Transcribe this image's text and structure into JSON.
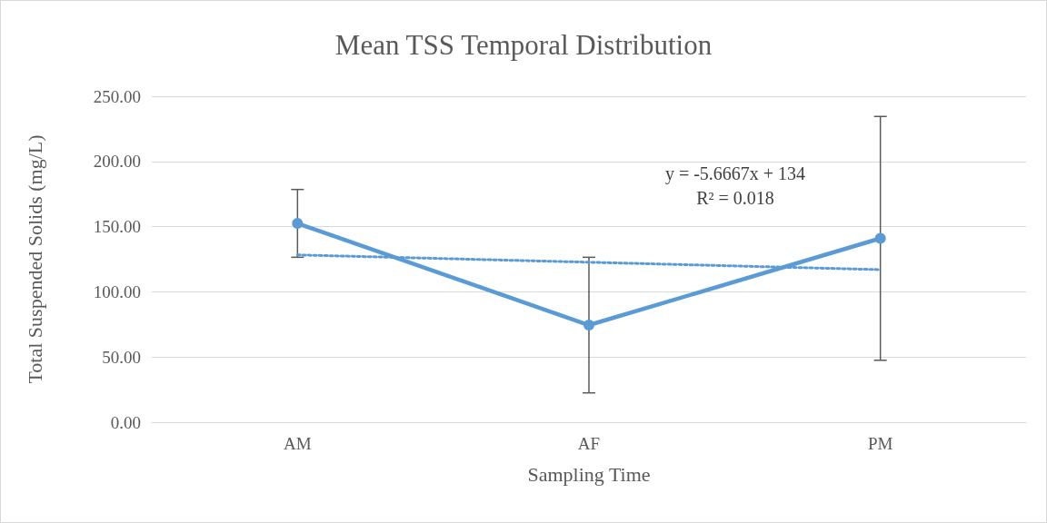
{
  "chart_data": {
    "type": "line",
    "title": "Mean TSS Temporal Distribution",
    "xlabel": "Sampling Time",
    "ylabel": "Total Suspended Solids (mg/L)",
    "categories": [
      "AM",
      "AF",
      "PM"
    ],
    "series": [
      {
        "color": "#5b9bd5",
        "values": [
          152.5,
          74.5,
          141
        ],
        "errors": [
          26,
          52,
          93.5
        ],
        "marker": "circle",
        "line_style": "solid"
      },
      {
        "type": "line",
        "x": [
          "AM",
          "AF",
          "PM"
        ],
        "color": "#5b9bd5",
        "values": [
          128.3,
          122.7,
          117
        ],
        "marker": "none",
        "line_style": "dotted"
      }
    ],
    "ylim": [
      0,
      250
    ],
    "yticks": [
      {
        "value": 0,
        "label": "0.00"
      },
      {
        "value": 50,
        "label": "50.00"
      },
      {
        "value": 100,
        "label": "100.00"
      },
      {
        "value": 150,
        "label": "150.00"
      },
      {
        "value": 200,
        "label": "200.00"
      },
      {
        "value": 250,
        "label": "250.00"
      }
    ],
    "grid": "y",
    "annotations": [
      "y = -5.6667x + 134",
      "R² = 0.018"
    ]
  }
}
